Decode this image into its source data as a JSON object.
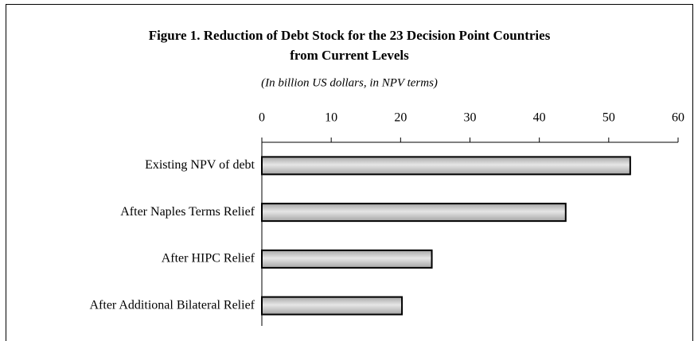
{
  "chart_data": {
    "type": "barh",
    "title": [
      "Figure 1.  Reduction of Debt Stock for the 23 Decision Point Countries",
      "from Current Levels"
    ],
    "subtitle": "(In billion US dollars, in NPV terms)",
    "categories": [
      "Existing NPV of debt",
      "After Naples Terms Relief",
      "After HIPC Relief",
      "After Additional Bilateral Relief"
    ],
    "values": [
      53.1,
      43.8,
      24.5,
      20.2
    ],
    "color": "#a6a6a6",
    "xlim": [
      0,
      60
    ],
    "xticks": [
      0,
      10,
      20,
      30,
      40,
      50,
      60
    ]
  }
}
